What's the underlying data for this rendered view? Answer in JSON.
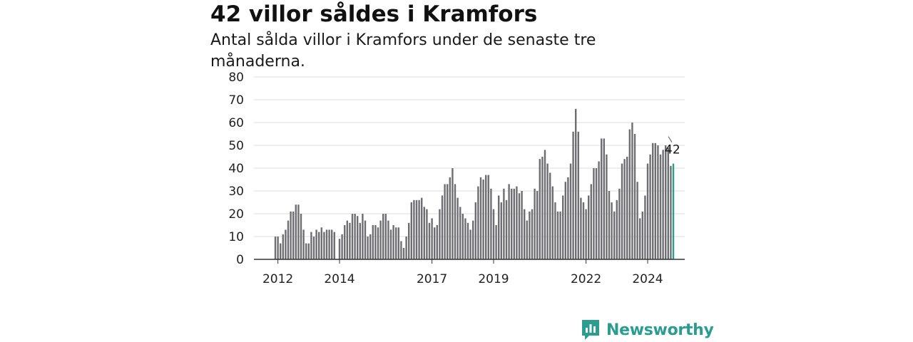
{
  "header": {
    "title": "42 villor såldes i Kramfors",
    "subtitle": "Antal sålda villor i Kramfors under de senaste tre månaderna."
  },
  "brand": {
    "name": "Newsworthy",
    "icon": "newsworthy-logo-icon",
    "color": "#2a9d8f"
  },
  "colors": {
    "bar": "#6e6d73",
    "highlight": "#2a9d8f",
    "grid": "#dddddd",
    "axis": "#333333"
  },
  "chart_data": {
    "type": "bar",
    "title": "",
    "xlabel": "",
    "ylabel": "",
    "ylim": [
      0,
      80
    ],
    "yticks": [
      0,
      10,
      20,
      30,
      40,
      50,
      60,
      70,
      80
    ],
    "xticks": [
      {
        "label": "2012",
        "index": 1
      },
      {
        "label": "2014",
        "index": 25
      },
      {
        "label": "2017",
        "index": 61
      },
      {
        "label": "2019",
        "index": 85
      },
      {
        "label": "2022",
        "index": 121
      },
      {
        "label": "2024",
        "index": 145
      }
    ],
    "grid": true,
    "legend": "none",
    "highlight_label": "42",
    "highlight_index": 155,
    "values": [
      10,
      10,
      7,
      11,
      13,
      17,
      21,
      21,
      24,
      24,
      20,
      13,
      7,
      7,
      12,
      10,
      13,
      12,
      14,
      12,
      13,
      13,
      13,
      12,
      0,
      9,
      11,
      15,
      17,
      16,
      20,
      20,
      19,
      16,
      20,
      17,
      10,
      11,
      15,
      15,
      14,
      17,
      20,
      20,
      17,
      13,
      15,
      14,
      14,
      8,
      5,
      10,
      16,
      25,
      26,
      26,
      26,
      27,
      23,
      22,
      16,
      18,
      14,
      15,
      22,
      28,
      33,
      33,
      36,
      40,
      33,
      27,
      23,
      20,
      18,
      16,
      13,
      17,
      25,
      32,
      36,
      35,
      37,
      37,
      31,
      22,
      15,
      28,
      25,
      31,
      26,
      33,
      31,
      31,
      32,
      29,
      30,
      22,
      17,
      21,
      22,
      31,
      30,
      44,
      45,
      48,
      42,
      38,
      32,
      25,
      21,
      21,
      28,
      34,
      36,
      42,
      56,
      66,
      56,
      27,
      25,
      22,
      28,
      33,
      40,
      40,
      43,
      53,
      53,
      46,
      30,
      25,
      21,
      26,
      31,
      42,
      44,
      45,
      57,
      60,
      55,
      34,
      18,
      21,
      28,
      42,
      46,
      51,
      51,
      50,
      46,
      48,
      50,
      49,
      41,
      42
    ]
  }
}
